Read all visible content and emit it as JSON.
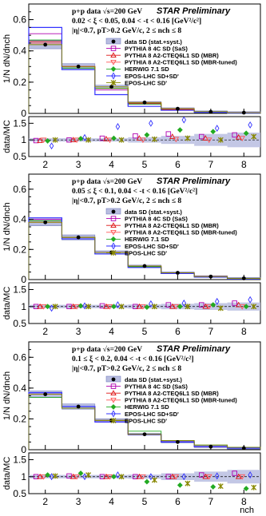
{
  "colors": {
    "data": "#000000",
    "sas": "#b000b0",
    "mbr": "#dd1111",
    "mbr_tuned": "#ff5555",
    "herwig": "#22aa22",
    "eposdd": "#3333ff",
    "eposlhc": "#888800",
    "band": "#b8bde0"
  },
  "header": {
    "line1": "p+p data √s=200 GeV",
    "preliminary": "STAR Preliminary"
  },
  "legend": [
    {
      "key": "data",
      "label": "data SD (stat.+syst.)"
    },
    {
      "key": "sas",
      "label": "PYTHIA 8 4C SD (SaS)"
    },
    {
      "key": "mbr",
      "label": "PYTHIA 8 A2-CTEQ6L1 SD (MBR)"
    },
    {
      "key": "mbr_tuned",
      "label": "PYTHIA 8 A2-CTEQ6L1 SD (MBR-tuned)"
    },
    {
      "key": "herwig",
      "label": "HERWIG 7.1 SD"
    },
    {
      "key": "eposdd",
      "label": "EPOS-LHC SD+SD'"
    },
    {
      "key": "eposlhc",
      "label": "EPOS-LHC SD'"
    }
  ],
  "chart_data": [
    {
      "type": "line",
      "cut_label": "0.02 < ξ < 0.05, 0.04 < -t < 0.16 [GeV²/c²]",
      "eta_label": "|η|<0.7, pT>0.2 GeV/c, 2 ≤ nch ≤ 8",
      "ylabel": "1/N dN/dnch",
      "ratio_ylabel": "data/MC",
      "x": [
        2,
        3,
        4,
        5,
        6,
        7,
        8
      ],
      "ylim": [
        0,
        0.7
      ],
      "yticks": [
        "0",
        "0.2",
        "0.4",
        "0.6"
      ],
      "ratio_ylim": [
        0.5,
        1.7
      ],
      "ratio_yticks": [
        "0.5",
        "1",
        "1.5"
      ],
      "data_values": [
        0.44,
        0.3,
        0.17,
        0.07,
        0.03,
        0.01,
        0.005
      ],
      "series": [
        {
          "key": "sas",
          "values": [
            0.51,
            0.3,
            0.15,
            0.06,
            0.025,
            0.01,
            0.004
          ]
        },
        {
          "key": "mbr",
          "values": [
            0.46,
            0.3,
            0.16,
            0.065,
            0.025,
            0.01,
            0.004
          ]
        },
        {
          "key": "mbr_tuned",
          "values": [
            0.45,
            0.3,
            0.16,
            0.07,
            0.03,
            0.01,
            0.005
          ]
        },
        {
          "key": "herwig",
          "values": [
            0.47,
            0.29,
            0.16,
            0.06,
            0.02,
            0.008,
            0.003
          ]
        },
        {
          "key": "eposdd",
          "values": [
            0.55,
            0.28,
            0.12,
            0.045,
            0.02,
            0.008,
            0.003
          ]
        },
        {
          "key": "eposlhc",
          "values": [
            0.44,
            0.3,
            0.17,
            0.07,
            0.03,
            0.012,
            0.005
          ]
        }
      ],
      "ratios": [
        {
          "key": "sas",
          "values": [
            0.98,
            1.0,
            1.05,
            1.12,
            1.18,
            1.1,
            1.15
          ]
        },
        {
          "key": "mbr",
          "values": [
            0.98,
            1.0,
            1.03,
            1.05,
            1.1,
            1.05,
            1.08
          ]
        },
        {
          "key": "mbr_tuned",
          "values": [
            1.0,
            1.0,
            1.0,
            1.0,
            1.02,
            1.0,
            1.05
          ]
        },
        {
          "key": "herwig",
          "values": [
            0.97,
            1.04,
            1.05,
            1.15,
            1.3,
            1.25,
            1.2
          ]
        },
        {
          "key": "eposdd",
          "values": [
            0.82,
            1.07,
            1.4,
            1.5,
            1.6,
            1.35,
            1.45
          ]
        },
        {
          "key": "eposlhc",
          "values": [
            1.0,
            1.0,
            1.0,
            1.02,
            1.05,
            1.0,
            1.1
          ]
        }
      ],
      "band_halfwidth": [
        0.05,
        0.05,
        0.05,
        0.08,
        0.12,
        0.18,
        0.22
      ]
    },
    {
      "type": "line",
      "cut_label": "0.05 ≤ ξ < 0.1, 0.04 < -t < 0.16 [GeV²/c²]",
      "eta_label": "|η|<0.7, pT>0.2 GeV/c, 2 ≤ nch ≤ 8",
      "ylabel": "1/N dN/dnch",
      "ratio_ylabel": "data/MC",
      "x": [
        2,
        3,
        4,
        5,
        6,
        7,
        8
      ],
      "ylim": [
        0,
        0.7
      ],
      "yticks": [
        "0",
        "0.2",
        "0.4",
        "0.6"
      ],
      "ratio_ylim": [
        0.5,
        1.7
      ],
      "ratio_yticks": [
        "0.5",
        "1",
        "1.5"
      ],
      "data_values": [
        0.38,
        0.28,
        0.18,
        0.09,
        0.045,
        0.02,
        0.008
      ],
      "series": [
        {
          "key": "sas",
          "values": [
            0.4,
            0.28,
            0.17,
            0.085,
            0.04,
            0.018,
            0.007
          ]
        },
        {
          "key": "mbr",
          "values": [
            0.39,
            0.28,
            0.18,
            0.09,
            0.043,
            0.02,
            0.008
          ]
        },
        {
          "key": "mbr_tuned",
          "values": [
            0.38,
            0.28,
            0.18,
            0.09,
            0.045,
            0.02,
            0.008
          ]
        },
        {
          "key": "herwig",
          "values": [
            0.39,
            0.28,
            0.17,
            0.085,
            0.042,
            0.019,
            0.007
          ]
        },
        {
          "key": "eposdd",
          "values": [
            0.41,
            0.27,
            0.17,
            0.08,
            0.04,
            0.017,
            0.006
          ]
        },
        {
          "key": "eposlhc",
          "values": [
            0.38,
            0.28,
            0.18,
            0.09,
            0.045,
            0.02,
            0.008
          ]
        }
      ],
      "ratios": [
        {
          "key": "sas",
          "values": [
            1.0,
            1.0,
            1.02,
            1.0,
            1.05,
            1.05,
            1.1
          ]
        },
        {
          "key": "mbr",
          "values": [
            1.0,
            1.0,
            1.0,
            1.0,
            1.0,
            1.0,
            1.05
          ]
        },
        {
          "key": "mbr_tuned",
          "values": [
            1.0,
            1.0,
            1.0,
            1.0,
            1.0,
            1.0,
            1.0
          ]
        },
        {
          "key": "herwig",
          "values": [
            1.0,
            1.02,
            1.0,
            0.98,
            1.0,
            1.05,
            1.0
          ]
        },
        {
          "key": "eposdd",
          "values": [
            0.95,
            1.02,
            1.05,
            1.08,
            1.1,
            1.15,
            1.2
          ]
        },
        {
          "key": "eposlhc",
          "values": [
            1.0,
            1.0,
            1.0,
            1.0,
            1.0,
            0.95,
            1.0
          ]
        }
      ],
      "band_halfwidth": [
        0.05,
        0.05,
        0.05,
        0.06,
        0.08,
        0.1,
        0.12
      ]
    },
    {
      "type": "line",
      "cut_label": "0.1 ≤ ξ < 0.2, 0.04 < -t < 0.16 [GeV²/c²]",
      "eta_label": "|η|<0.7, pT>0.2 GeV/c, 2 ≤ nch ≤ 8",
      "ylabel": "1/N dN/dnch",
      "ratio_ylabel": "data/MC",
      "xlabel": "nch",
      "x": [
        2,
        3,
        4,
        5,
        6,
        7,
        8
      ],
      "ylim": [
        0,
        0.7
      ],
      "yticks": [
        "0",
        "0.2",
        "0.4",
        "0.6"
      ],
      "ratio_ylim": [
        0.5,
        1.7
      ],
      "ratio_yticks": [
        "0.5",
        "1",
        "1.5"
      ],
      "data_values": [
        0.36,
        0.28,
        0.19,
        0.1,
        0.05,
        0.02,
        0.01
      ],
      "series": [
        {
          "key": "sas",
          "values": [
            0.37,
            0.27,
            0.18,
            0.1,
            0.05,
            0.02,
            0.01
          ]
        },
        {
          "key": "mbr",
          "values": [
            0.36,
            0.28,
            0.19,
            0.1,
            0.05,
            0.02,
            0.01
          ]
        },
        {
          "key": "mbr_tuned",
          "values": [
            0.36,
            0.28,
            0.19,
            0.1,
            0.05,
            0.02,
            0.01
          ]
        },
        {
          "key": "herwig",
          "values": [
            0.34,
            0.27,
            0.19,
            0.12,
            0.06,
            0.03,
            0.015
          ]
        },
        {
          "key": "eposdd",
          "values": [
            0.37,
            0.28,
            0.18,
            0.1,
            0.05,
            0.02,
            0.01
          ]
        },
        {
          "key": "eposlhc",
          "values": [
            0.36,
            0.27,
            0.19,
            0.1,
            0.06,
            0.03,
            0.015
          ]
        }
      ],
      "ratios": [
        {
          "key": "sas",
          "values": [
            1.0,
            1.02,
            1.0,
            1.0,
            1.0,
            1.05,
            1.1
          ]
        },
        {
          "key": "mbr",
          "values": [
            1.0,
            1.0,
            1.0,
            1.0,
            1.0,
            1.0,
            1.0
          ]
        },
        {
          "key": "mbr_tuned",
          "values": [
            1.0,
            1.0,
            1.0,
            1.0,
            1.0,
            1.0,
            1.0
          ]
        },
        {
          "key": "herwig",
          "values": [
            1.05,
            1.1,
            1.0,
            0.85,
            0.75,
            0.7,
            0.65
          ]
        },
        {
          "key": "eposdd",
          "values": [
            1.0,
            1.0,
            1.05,
            1.0,
            1.0,
            1.02,
            1.05
          ]
        },
        {
          "key": "eposlhc",
          "values": [
            1.02,
            1.05,
            1.0,
            0.9,
            0.8,
            0.72,
            0.68
          ]
        }
      ],
      "band_halfwidth": [
        0.05,
        0.05,
        0.05,
        0.06,
        0.1,
        0.15,
        0.2
      ]
    }
  ],
  "x_ticks": [
    "2",
    "3",
    "4",
    "5",
    "6",
    "7",
    "8"
  ]
}
